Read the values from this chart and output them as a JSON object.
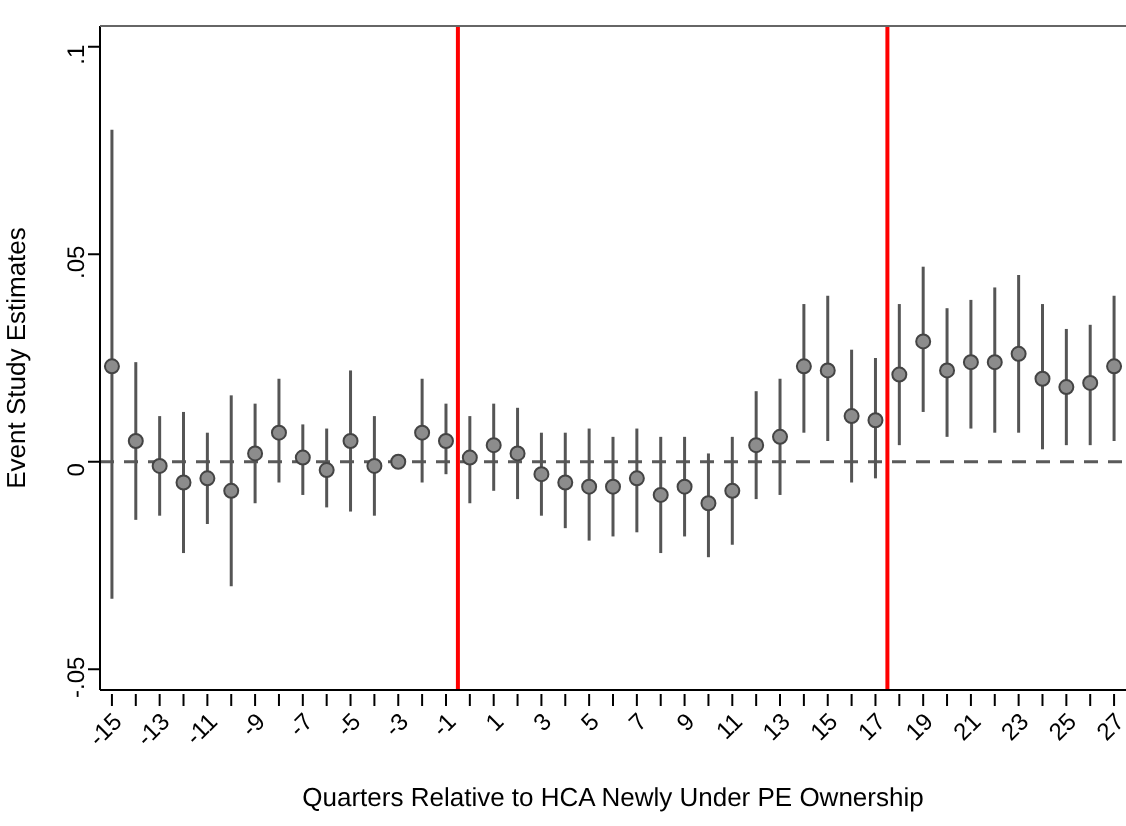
{
  "chart_data": {
    "type": "scatter",
    "xlabel": "Quarters Relative to HCA Newly Under PE Ownership",
    "ylabel": "Event Study Estimates",
    "x": [
      -15,
      -14,
      -13,
      -12,
      -11,
      -10,
      -9,
      -8,
      -7,
      -6,
      -5,
      -4,
      -3,
      -2,
      -1,
      0,
      1,
      2,
      3,
      4,
      5,
      6,
      7,
      8,
      9,
      10,
      11,
      12,
      13,
      14,
      15,
      16,
      17,
      18,
      19,
      20,
      21,
      22,
      23,
      24,
      25,
      26,
      27
    ],
    "values": [
      0.023,
      0.005,
      -0.001,
      -0.005,
      -0.004,
      -0.007,
      0.002,
      0.007,
      0.001,
      -0.002,
      0.005,
      -0.001,
      0,
      0.007,
      0.005,
      0.001,
      0.004,
      0.002,
      -0.003,
      -0.005,
      -0.006,
      -0.006,
      -0.004,
      -0.008,
      -0.006,
      -0.01,
      -0.007,
      0.004,
      0.006,
      0.023,
      0.022,
      0.011,
      0.01,
      0.021,
      0.029,
      0.022,
      0.024,
      0.024,
      0.026,
      0.02,
      0.018,
      0.019,
      0.023
    ],
    "errors": [
      [
        -0.033,
        0.08
      ],
      [
        -0.014,
        0.024
      ],
      [
        -0.013,
        0.011
      ],
      [
        -0.022,
        0.012
      ],
      [
        -0.015,
        0.007
      ],
      [
        -0.03,
        0.016
      ],
      [
        -0.01,
        0.014
      ],
      [
        -0.005,
        0.02
      ],
      [
        -0.008,
        0.009
      ],
      [
        -0.011,
        0.008
      ],
      [
        -0.012,
        0.022
      ],
      [
        -0.013,
        0.011
      ],
      null,
      [
        -0.005,
        0.02
      ],
      [
        -0.003,
        0.014
      ],
      [
        -0.01,
        0.011
      ],
      [
        -0.007,
        0.014
      ],
      [
        -0.009,
        0.013
      ],
      [
        -0.013,
        0.007
      ],
      [
        -0.016,
        0.007
      ],
      [
        -0.019,
        0.008
      ],
      [
        -0.018,
        0.006
      ],
      [
        -0.017,
        0.008
      ],
      [
        -0.022,
        0.006
      ],
      [
        -0.018,
        0.006
      ],
      [
        -0.023,
        0.002
      ],
      [
        -0.02,
        0.006
      ],
      [
        -0.009,
        0.017
      ],
      [
        -0.008,
        0.02
      ],
      [
        0.007,
        0.038
      ],
      [
        0.005,
        0.04
      ],
      [
        -0.005,
        0.027
      ],
      [
        -0.004,
        0.025
      ],
      [
        0.004,
        0.038
      ],
      [
        0.012,
        0.047
      ],
      [
        0.006,
        0.037
      ],
      [
        0.008,
        0.039
      ],
      [
        0.007,
        0.042
      ],
      [
        0.007,
        0.045
      ],
      [
        0.003,
        0.038
      ],
      [
        0.004,
        0.032
      ],
      [
        0.004,
        0.033
      ],
      [
        0.005,
        0.04
      ]
    ],
    "color": "#8c8c8c",
    "marker": "circle",
    "legend": false,
    "grid": false,
    "xlim": [
      -15.5,
      27.5
    ],
    "xticks": [
      -15,
      {
        "value": -14,
        "label": null
      },
      -13,
      {
        "value": -12,
        "label": null
      },
      -11,
      {
        "value": -10,
        "label": null
      },
      -9,
      {
        "value": -8,
        "label": null
      },
      -7,
      {
        "value": -6,
        "label": null
      },
      -5,
      {
        "value": -4,
        "label": null
      },
      -3,
      {
        "value": -2,
        "label": null
      },
      -1,
      {
        "value": 0,
        "label": null
      },
      1,
      {
        "value": 2,
        "label": null
      },
      3,
      {
        "value": 4,
        "label": null
      },
      5,
      {
        "value": 6,
        "label": null
      },
      7,
      {
        "value": 8,
        "label": null
      },
      9,
      {
        "value": 10,
        "label": null
      },
      11,
      {
        "value": 12,
        "label": null
      },
      13,
      {
        "value": 14,
        "label": null
      },
      15,
      {
        "value": 16,
        "label": null
      },
      17,
      {
        "value": 18,
        "label": null
      },
      19,
      {
        "value": 20,
        "label": null
      },
      21,
      {
        "value": 22,
        "label": null
      },
      23,
      {
        "value": 24,
        "label": null
      },
      25,
      {
        "value": 26,
        "label": null
      },
      27
    ],
    "ylim": [
      -0.055,
      0.105
    ],
    "yticks": [
      {
        "value": -0.05,
        "label": "-.05"
      },
      {
        "value": 0,
        "label": "0"
      },
      {
        "value": 0.05,
        "label": ".05"
      },
      {
        "value": 0.1,
        "label": ".1"
      }
    ],
    "ref_lines": [
      {
        "axis": "y",
        "value": 0,
        "color": "#5a5a5a",
        "line_style": "dashed"
      },
      {
        "axis": "x",
        "value": -0.5,
        "color": "#ff0000",
        "line_style": "solid"
      },
      {
        "axis": "x",
        "value": 17.5,
        "color": "#ff0000",
        "line_style": "solid"
      }
    ]
  }
}
